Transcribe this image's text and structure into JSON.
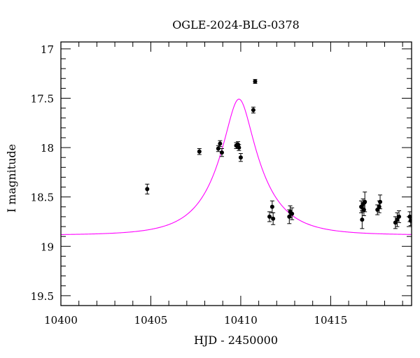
{
  "chart_data": {
    "type": "scatter",
    "title": "OGLE-2024-BLG-0378",
    "xlabel": "HJD - 2450000",
    "ylabel": "I magnitude",
    "xlim": [
      10400,
      10419.5
    ],
    "ylim": [
      19.6,
      16.93
    ],
    "y_inverted": true,
    "x_major_ticks": [
      10400,
      10405,
      10410,
      10415
    ],
    "x_tick_labels": [
      "10400",
      "10405",
      "10410",
      "10415"
    ],
    "y_major_ticks": [
      17,
      17.5,
      18,
      18.5,
      19,
      19.5
    ],
    "y_tick_labels": [
      "17",
      "17.5",
      "18",
      "18.5",
      "19",
      "19.5"
    ],
    "grid": false,
    "colors": {
      "data": "#000000",
      "model": "#ff00ff"
    },
    "series": [
      {
        "type": "scatter",
        "points": [
          {
            "x": 10404.8,
            "y": 18.42,
            "err": 0.05
          },
          {
            "x": 10407.7,
            "y": 18.04,
            "err": 0.03
          },
          {
            "x": 10408.75,
            "y": 18.01,
            "err": 0.03
          },
          {
            "x": 10408.85,
            "y": 17.96,
            "err": 0.03
          },
          {
            "x": 10408.95,
            "y": 18.05,
            "err": 0.04
          },
          {
            "x": 10409.75,
            "y": 17.98,
            "err": 0.03
          },
          {
            "x": 10409.85,
            "y": 17.97,
            "err": 0.03
          },
          {
            "x": 10409.9,
            "y": 18.0,
            "err": 0.03
          },
          {
            "x": 10410.0,
            "y": 18.1,
            "err": 0.04
          },
          {
            "x": 10410.7,
            "y": 17.62,
            "err": 0.03
          },
          {
            "x": 10410.8,
            "y": 17.33,
            "err": 0.02
          },
          {
            "x": 10411.6,
            "y": 18.7,
            "err": 0.05
          },
          {
            "x": 10411.75,
            "y": 18.6,
            "err": 0.06
          },
          {
            "x": 10411.8,
            "y": 18.72,
            "err": 0.06
          },
          {
            "x": 10412.7,
            "y": 18.7,
            "err": 0.07
          },
          {
            "x": 10412.75,
            "y": 18.65,
            "err": 0.06
          },
          {
            "x": 10412.85,
            "y": 18.67,
            "err": 0.06
          },
          {
            "x": 10416.7,
            "y": 18.6,
            "err": 0.06
          },
          {
            "x": 10416.75,
            "y": 18.73,
            "err": 0.09
          },
          {
            "x": 10416.8,
            "y": 18.57,
            "err": 0.05
          },
          {
            "x": 10416.85,
            "y": 18.63,
            "err": 0.06
          },
          {
            "x": 10416.9,
            "y": 18.55,
            "err": 0.1
          },
          {
            "x": 10417.6,
            "y": 18.63,
            "err": 0.05
          },
          {
            "x": 10417.7,
            "y": 18.6,
            "err": 0.06
          },
          {
            "x": 10417.75,
            "y": 18.55,
            "err": 0.07
          },
          {
            "x": 10418.6,
            "y": 18.76,
            "err": 0.06
          },
          {
            "x": 10418.7,
            "y": 18.73,
            "err": 0.07
          },
          {
            "x": 10418.8,
            "y": 18.7,
            "err": 0.06
          },
          {
            "x": 10419.4,
            "y": 18.7,
            "err": 0.05
          },
          {
            "x": 10419.45,
            "y": 18.74,
            "err": 0.05
          }
        ]
      },
      {
        "type": "line",
        "model": "point-lens",
        "t0": 10409.9,
        "u0": 0.29,
        "tE": 2.4,
        "baseline": 18.88
      }
    ]
  }
}
